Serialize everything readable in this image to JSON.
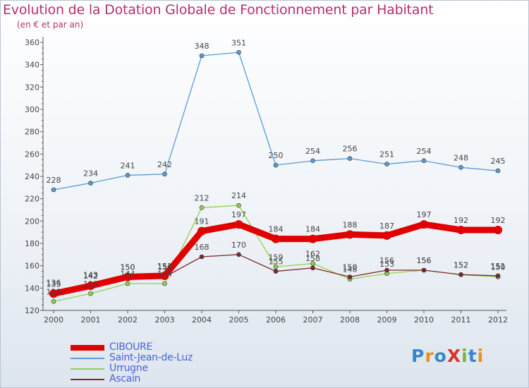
{
  "chart_data": {
    "type": "line",
    "title": "Evolution de la Dotation Globale de Fonctionnement par Habitant",
    "subtitle": "(en € et par an)",
    "xlabel": "",
    "ylabel": "",
    "categories": [
      "2000",
      "2001",
      "2002",
      "2003",
      "2004",
      "2005",
      "2006",
      "2007",
      "2008",
      "2009",
      "2010",
      "2011",
      "2012"
    ],
    "ylim": [
      120,
      360
    ],
    "yticks": [
      120,
      140,
      160,
      180,
      200,
      220,
      240,
      260,
      280,
      300,
      320,
      340,
      360
    ],
    "grid": false,
    "series": [
      {
        "name": "CIBOURE",
        "color": "#e00000",
        "values": [
          135,
          142,
          150,
          151,
          191,
          197,
          184,
          184,
          188,
          187,
          197,
          192,
          192
        ]
      },
      {
        "name": "Saint-Jean-de-Luz",
        "color": "#5b9bd5",
        "values": [
          228,
          234,
          241,
          242,
          348,
          351,
          250,
          254,
          256,
          251,
          254,
          248,
          245
        ]
      },
      {
        "name": "Urrugne",
        "color": "#92d050",
        "values": [
          128,
          135,
          144,
          144,
          212,
          214,
          159,
          162,
          148,
          153,
          156,
          152,
          150
        ]
      },
      {
        "name": "Ascain",
        "color": "#7b2b2b",
        "values": [
          136,
          143,
          150,
          150,
          168,
          170,
          155,
          158,
          150,
          156,
          156,
          152,
          151
        ]
      }
    ]
  },
  "legend": [
    "CIBOURE",
    "Saint-Jean-de-Luz",
    "Urrugne",
    "Ascain"
  ],
  "logo": {
    "text": "ProXiti",
    "colors": [
      "#3a86c8",
      "#e8901a",
      "#3a86c8",
      "#d8322b",
      "#7ab33a",
      "#3a86c8",
      "#e8901a"
    ]
  }
}
